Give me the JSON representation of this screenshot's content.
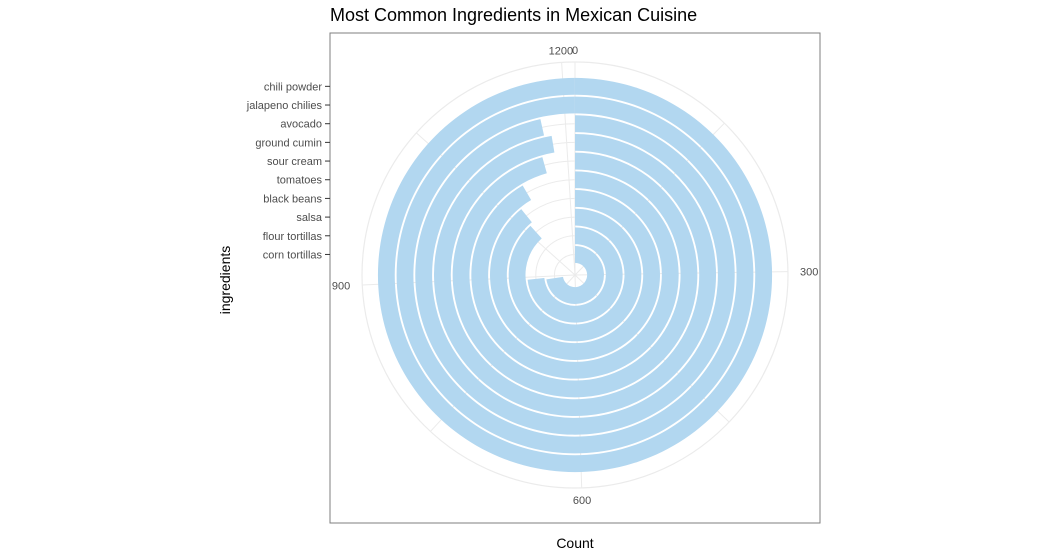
{
  "chart_data": {
    "type": "bar",
    "coord": "polar",
    "title": "Most Common Ingredients in Mexican Cuisine",
    "xlabel": "Count",
    "ylabel": "ingredients",
    "categories": [
      "corn tortillas",
      "flour tortillas",
      "salsa",
      "black beans",
      "tomatoes",
      "sour cream",
      "ground cumin",
      "avocado",
      "jalapeno chilies",
      "chili powder"
    ],
    "values": [
      880,
      890,
      1070,
      1080,
      1110,
      1160,
      1180,
      1170,
      1240,
      1260
    ],
    "count_range": [
      0,
      1200
    ],
    "count_ticks": [
      0,
      300,
      600,
      900,
      1200
    ],
    "count_tick_labels": [
      "0",
      "300",
      "600",
      "900",
      "1200"
    ],
    "grid": true,
    "colors": {
      "bar": "#b2d7f0",
      "grid": "#ebebeb",
      "panel_border": "#7f7f7f"
    }
  }
}
